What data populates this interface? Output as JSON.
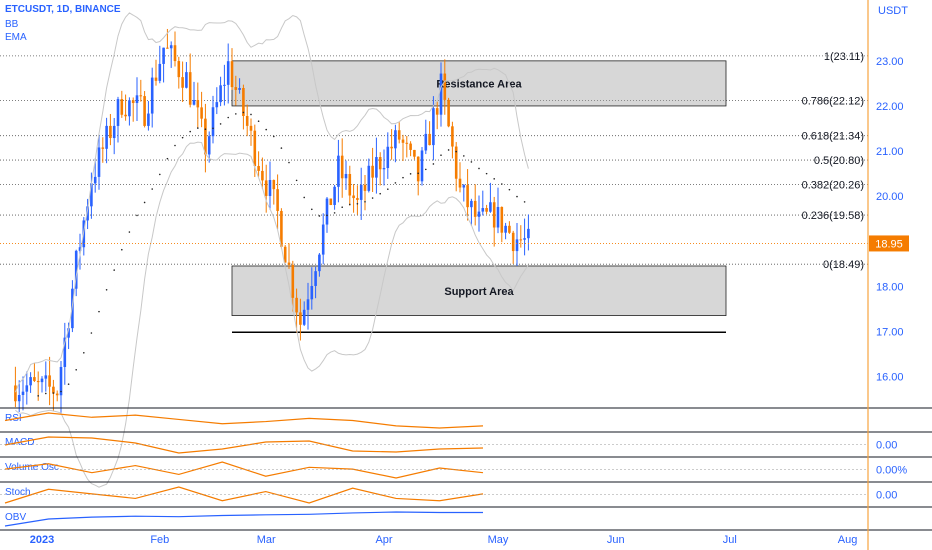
{
  "header": {
    "symbol": "ETCUSDT, 1D, BINANCE",
    "indicators": [
      "BB",
      "EMA"
    ],
    "currency": "USDT"
  },
  "colors": {
    "up": "#2962ff",
    "down": "#f57c00",
    "axis": "#f7a440",
    "price_tag": "#f57c00",
    "text_blue": "#2962ff"
  },
  "chart_data": {
    "type": "candlestick",
    "x_axis": {
      "ticks": [
        "2023",
        "Feb",
        "Mar",
        "Apr",
        "May",
        "Jun",
        "Jul",
        "Aug"
      ],
      "tick_dates": [
        "2023-01-01",
        "2023-02-01",
        "2023-03-01",
        "2023-04-01",
        "2023-05-01",
        "2023-06-01",
        "2023-07-01",
        "2023-08-01"
      ]
    },
    "y_axis": {
      "ticks": [
        "23.00",
        "22.00",
        "21.00",
        "20.00",
        "19.00",
        "18.00",
        "17.00",
        "16.00"
      ],
      "range": [
        15.3,
        24.35
      ],
      "current_price": "18.95",
      "current_value": 18.95
    },
    "fibonacci": [
      {
        "label": "1(23.11)",
        "value": 23.11
      },
      {
        "label": "0.786(22.12)",
        "value": 22.12
      },
      {
        "label": "0.618(21.34)",
        "value": 21.34
      },
      {
        "label": "0.5(20.80)",
        "value": 20.8
      },
      {
        "label": "0.382(20.26)",
        "value": 20.26
      },
      {
        "label": "0.236(19.58)",
        "value": 19.58
      },
      {
        "label": "0(18.49)",
        "value": 18.49
      }
    ],
    "zones": [
      {
        "label": "Resistance Area",
        "low": 22.0,
        "high": 23.0,
        "from": "2023-02-20",
        "to": "2023-06-30"
      },
      {
        "label": "Support Area",
        "low": 17.35,
        "high": 18.45,
        "from": "2023-02-20",
        "to": "2023-06-30"
      }
    ],
    "support_line": {
      "value": 16.98,
      "from": "2023-02-20",
      "to": "2023-06-30"
    },
    "candle_anchors": [
      {
        "date": "2022-12-25",
        "close": 15.8
      },
      {
        "date": "2023-01-05",
        "close": 15.7
      },
      {
        "date": "2023-01-10",
        "close": 18.5
      },
      {
        "date": "2023-01-14",
        "close": 20.4
      },
      {
        "date": "2023-01-22",
        "close": 22.1
      },
      {
        "date": "2023-01-28",
        "close": 21.9
      },
      {
        "date": "2023-02-02",
        "close": 23.3
      },
      {
        "date": "2023-02-08",
        "close": 22.6
      },
      {
        "date": "2023-02-13",
        "close": 21.1
      },
      {
        "date": "2023-02-19",
        "close": 22.9
      },
      {
        "date": "2023-02-26",
        "close": 21.0
      },
      {
        "date": "2023-03-04",
        "close": 19.6
      },
      {
        "date": "2023-03-10",
        "close": 17.2
      },
      {
        "date": "2023-03-14",
        "close": 18.6
      },
      {
        "date": "2023-03-20",
        "close": 20.6
      },
      {
        "date": "2023-03-25",
        "close": 19.8
      },
      {
        "date": "2023-03-30",
        "close": 20.7
      },
      {
        "date": "2023-04-05",
        "close": 21.3
      },
      {
        "date": "2023-04-10",
        "close": 20.4
      },
      {
        "date": "2023-04-16",
        "close": 22.4
      },
      {
        "date": "2023-04-21",
        "close": 20.1
      },
      {
        "date": "2023-04-26",
        "close": 19.4
      },
      {
        "date": "2023-04-30",
        "close": 19.6
      },
      {
        "date": "2023-05-05",
        "close": 19.1
      },
      {
        "date": "2023-05-09",
        "close": 18.95
      }
    ],
    "panes": [
      {
        "name": "RSI",
        "values": [
          55,
          62,
          58,
          60,
          56,
          52,
          54,
          57,
          55,
          50,
          48,
          50
        ]
      },
      {
        "name": "MACD",
        "value_label": "0.00",
        "values": [
          0.1,
          0.5,
          0.45,
          0.2,
          -0.3,
          -0.1,
          0.25,
          0.3,
          -0.2,
          -0.25,
          -0.1,
          -0.05
        ]
      },
      {
        "name": "Volume Osc",
        "value_label": "0.00%",
        "values": [
          5,
          20,
          -5,
          15,
          -10,
          25,
          -15,
          10,
          5,
          -20,
          8,
          -5
        ]
      },
      {
        "name": "Stoch",
        "value_label": "0.00",
        "values": [
          20,
          80,
          60,
          40,
          90,
          30,
          70,
          20,
          85,
          40,
          30,
          60
        ]
      },
      {
        "name": "OBV",
        "values": [
          10,
          40,
          48,
          52,
          50,
          55,
          58,
          60,
          66,
          70,
          68,
          68
        ]
      }
    ]
  }
}
